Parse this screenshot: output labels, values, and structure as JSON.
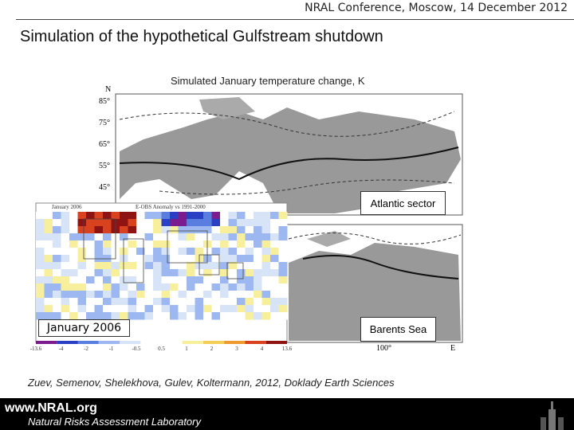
{
  "header": {
    "conference": "NRAL Conference, Moscow, 14 December 2012",
    "title": "Simulation of the hypothetical Gulfstream shutdown",
    "subtitle": "Simulated January temperature change, K"
  },
  "upper_map": {
    "north_label": "N",
    "latitudes": [
      "85°",
      "75°",
      "65°",
      "55°",
      "45°"
    ],
    "label": "Atlantic sector"
  },
  "lower_map": {
    "label": "Barents Sea",
    "longitude": "100°",
    "east_label": "E"
  },
  "anomaly_map": {
    "label": "January 2006",
    "caption": "January 2006",
    "heading": "E-OBS Anomaly vs 1991-2000",
    "colorbar": [
      "-13.6",
      "-4",
      "-2",
      "-1",
      "-0.5",
      "0.5",
      "1",
      "2",
      "3",
      "4",
      "13.6"
    ]
  },
  "citation": "Zuev, Semenov, Shelekhova, Gulev, Koltermann, 2012, Doklady Earth Sciences",
  "footer": {
    "url": "www.NRAL.org",
    "lab": "Natural Risks Assessment Laboratory"
  }
}
